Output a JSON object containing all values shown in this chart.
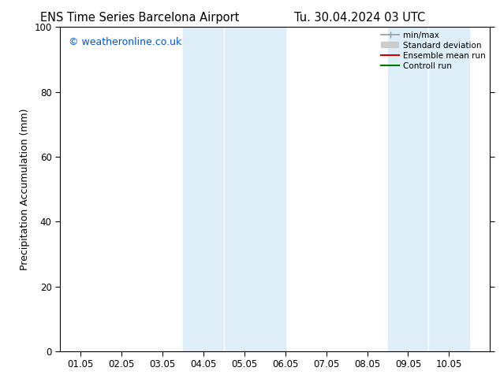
{
  "title_left": "ENS Time Series Barcelona Airport",
  "title_right": "Tu. 30.04.2024 03 UTC",
  "ylabel": "Precipitation Accumulation (mm)",
  "ylim": [
    0,
    100
  ],
  "xlim": [
    0,
    10.5
  ],
  "xtick_labels": [
    "01.05",
    "02.05",
    "03.05",
    "04.05",
    "05.05",
    "06.05",
    "07.05",
    "08.05",
    "09.05",
    "10.05"
  ],
  "xtick_positions": [
    0.5,
    1.5,
    2.5,
    3.5,
    4.5,
    5.5,
    6.5,
    7.5,
    8.5,
    9.5
  ],
  "ytick_positions": [
    0,
    20,
    40,
    60,
    80,
    100
  ],
  "shaded_bands": [
    {
      "x_start": 3.0,
      "x_end": 4.0,
      "color": "#ddeef8"
    },
    {
      "x_start": 4.0,
      "x_end": 5.5,
      "color": "#ddeef8"
    },
    {
      "x_start": 8.0,
      "x_end": 9.0,
      "color": "#ddeef8"
    },
    {
      "x_start": 9.0,
      "x_end": 10.0,
      "color": "#ddeef8"
    }
  ],
  "watermark": "© weatheronline.co.uk",
  "watermark_color": "#0055cc",
  "legend_entries": [
    {
      "label": "min/max",
      "color": "#999999",
      "lw": 1.2,
      "type": "line_with_caps"
    },
    {
      "label": "Standard deviation",
      "color": "#cccccc",
      "lw": 6,
      "type": "thick_line"
    },
    {
      "label": "Ensemble mean run",
      "color": "#cc0000",
      "lw": 1.5,
      "type": "line"
    },
    {
      "label": "Controll run",
      "color": "#007700",
      "lw": 1.5,
      "type": "line"
    }
  ],
  "background_color": "#ffffff",
  "title_fontsize": 10.5,
  "axis_fontsize": 9,
  "tick_fontsize": 8.5,
  "watermark_fontsize": 9
}
